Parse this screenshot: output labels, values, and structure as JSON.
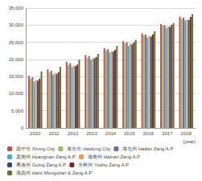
{
  "chart_data": {
    "type": "bar",
    "categories": [
      "2010",
      "2011",
      "2012",
      "2013",
      "2014",
      "2015",
      "2016",
      "2017",
      "2018"
    ],
    "x_label": "(year)",
    "ylim": [
      0,
      35000
    ],
    "yticks": [
      0,
      5000,
      10000,
      15000,
      20000,
      25000,
      30000,
      35000
    ],
    "grid": true,
    "legend": "bottom",
    "series": [
      {
        "name": "西宁市 Xining City",
        "color": "#c0504d",
        "values": [
          15200,
          17100,
          19300,
          21300,
          23300,
          25300,
          27600,
          30300,
          32500
        ]
      },
      {
        "name": "海东市 Haidong City",
        "color": "#9bbb59",
        "values": [
          14300,
          16200,
          18300,
          20500,
          22600,
          24700,
          27000,
          29800,
          31800
        ]
      },
      {
        "name": "海北州 Haibei Zang A.P",
        "color": "#8064a2",
        "values": [
          14800,
          16700,
          18900,
          21000,
          23000,
          25000,
          27300,
          30000,
          32200
        ]
      },
      {
        "name": "黄南州 Huangnan Zang A.P",
        "color": "#4bacc6",
        "values": [
          13500,
          15500,
          17800,
          19900,
          22000,
          24000,
          26400,
          29200,
          31400
        ]
      },
      {
        "name": "海南州 Hainan Zang A.P",
        "color": "#f79646",
        "values": [
          14000,
          16000,
          18200,
          20300,
          22400,
          24600,
          26900,
          29600,
          31600
        ]
      },
      {
        "name": "果洛州 Golog Zang A.P",
        "color": "#2c4d75",
        "values": [
          13800,
          15800,
          18000,
          20300,
          22300,
          24400,
          26700,
          29500,
          31500
        ]
      },
      {
        "name": "玉树州 Yushu Zang A.P",
        "color": "#772c2a",
        "values": [
          14400,
          16300,
          18500,
          20700,
          22800,
          25000,
          27300,
          30100,
          32400
        ]
      },
      {
        "name": "海西州 Haixi Mongolian & Zang A.P",
        "color": "#5f7530",
        "values": [
          16500,
          17800,
          19900,
          21600,
          23900,
          25700,
          28200,
          30600,
          33200
        ]
      }
    ]
  }
}
